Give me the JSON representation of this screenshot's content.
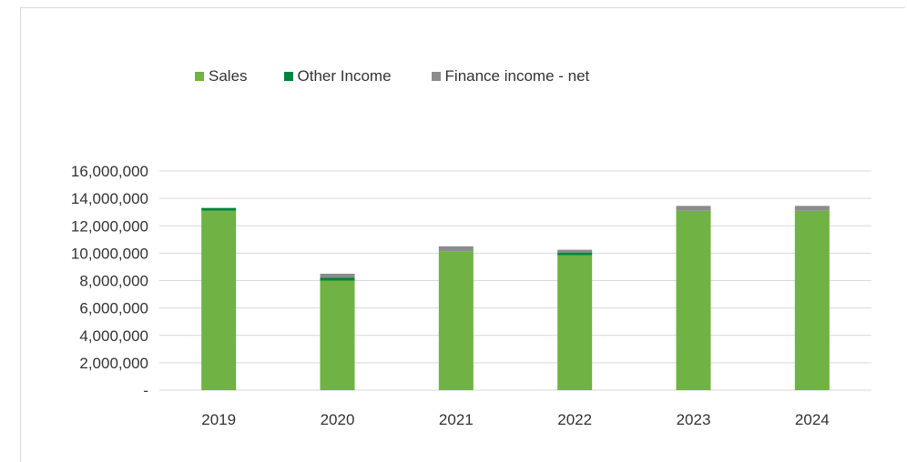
{
  "chart_data": {
    "type": "bar",
    "stacked": true,
    "title": "",
    "xlabel": "",
    "ylabel": "",
    "categories": [
      "2019",
      "2020",
      "2021",
      "2022",
      "2023",
      "2024"
    ],
    "series": [
      {
        "name": "Sales",
        "color": "#70b243",
        "values": [
          13100000,
          8000000,
          10150000,
          9850000,
          13100000,
          13100000
        ]
      },
      {
        "name": "Other Income",
        "color": "#00843d",
        "values": [
          200000,
          200000,
          0,
          200000,
          0,
          0
        ]
      },
      {
        "name": "Finance income - net",
        "color": "#8c8c8c",
        "values": [
          0,
          300000,
          350000,
          200000,
          350000,
          350000
        ]
      }
    ],
    "ylim": [
      0,
      16000000
    ],
    "yticks": [
      0,
      2000000,
      4000000,
      6000000,
      8000000,
      10000000,
      12000000,
      14000000,
      16000000
    ],
    "ytick_labels": [
      "-",
      "2,000,000",
      "4,000,000",
      "6,000,000",
      "8,000,000",
      "10,000,000",
      "12,000,000",
      "14,000,000",
      "16,000,000"
    ],
    "grid": true,
    "legend_position": "top"
  }
}
